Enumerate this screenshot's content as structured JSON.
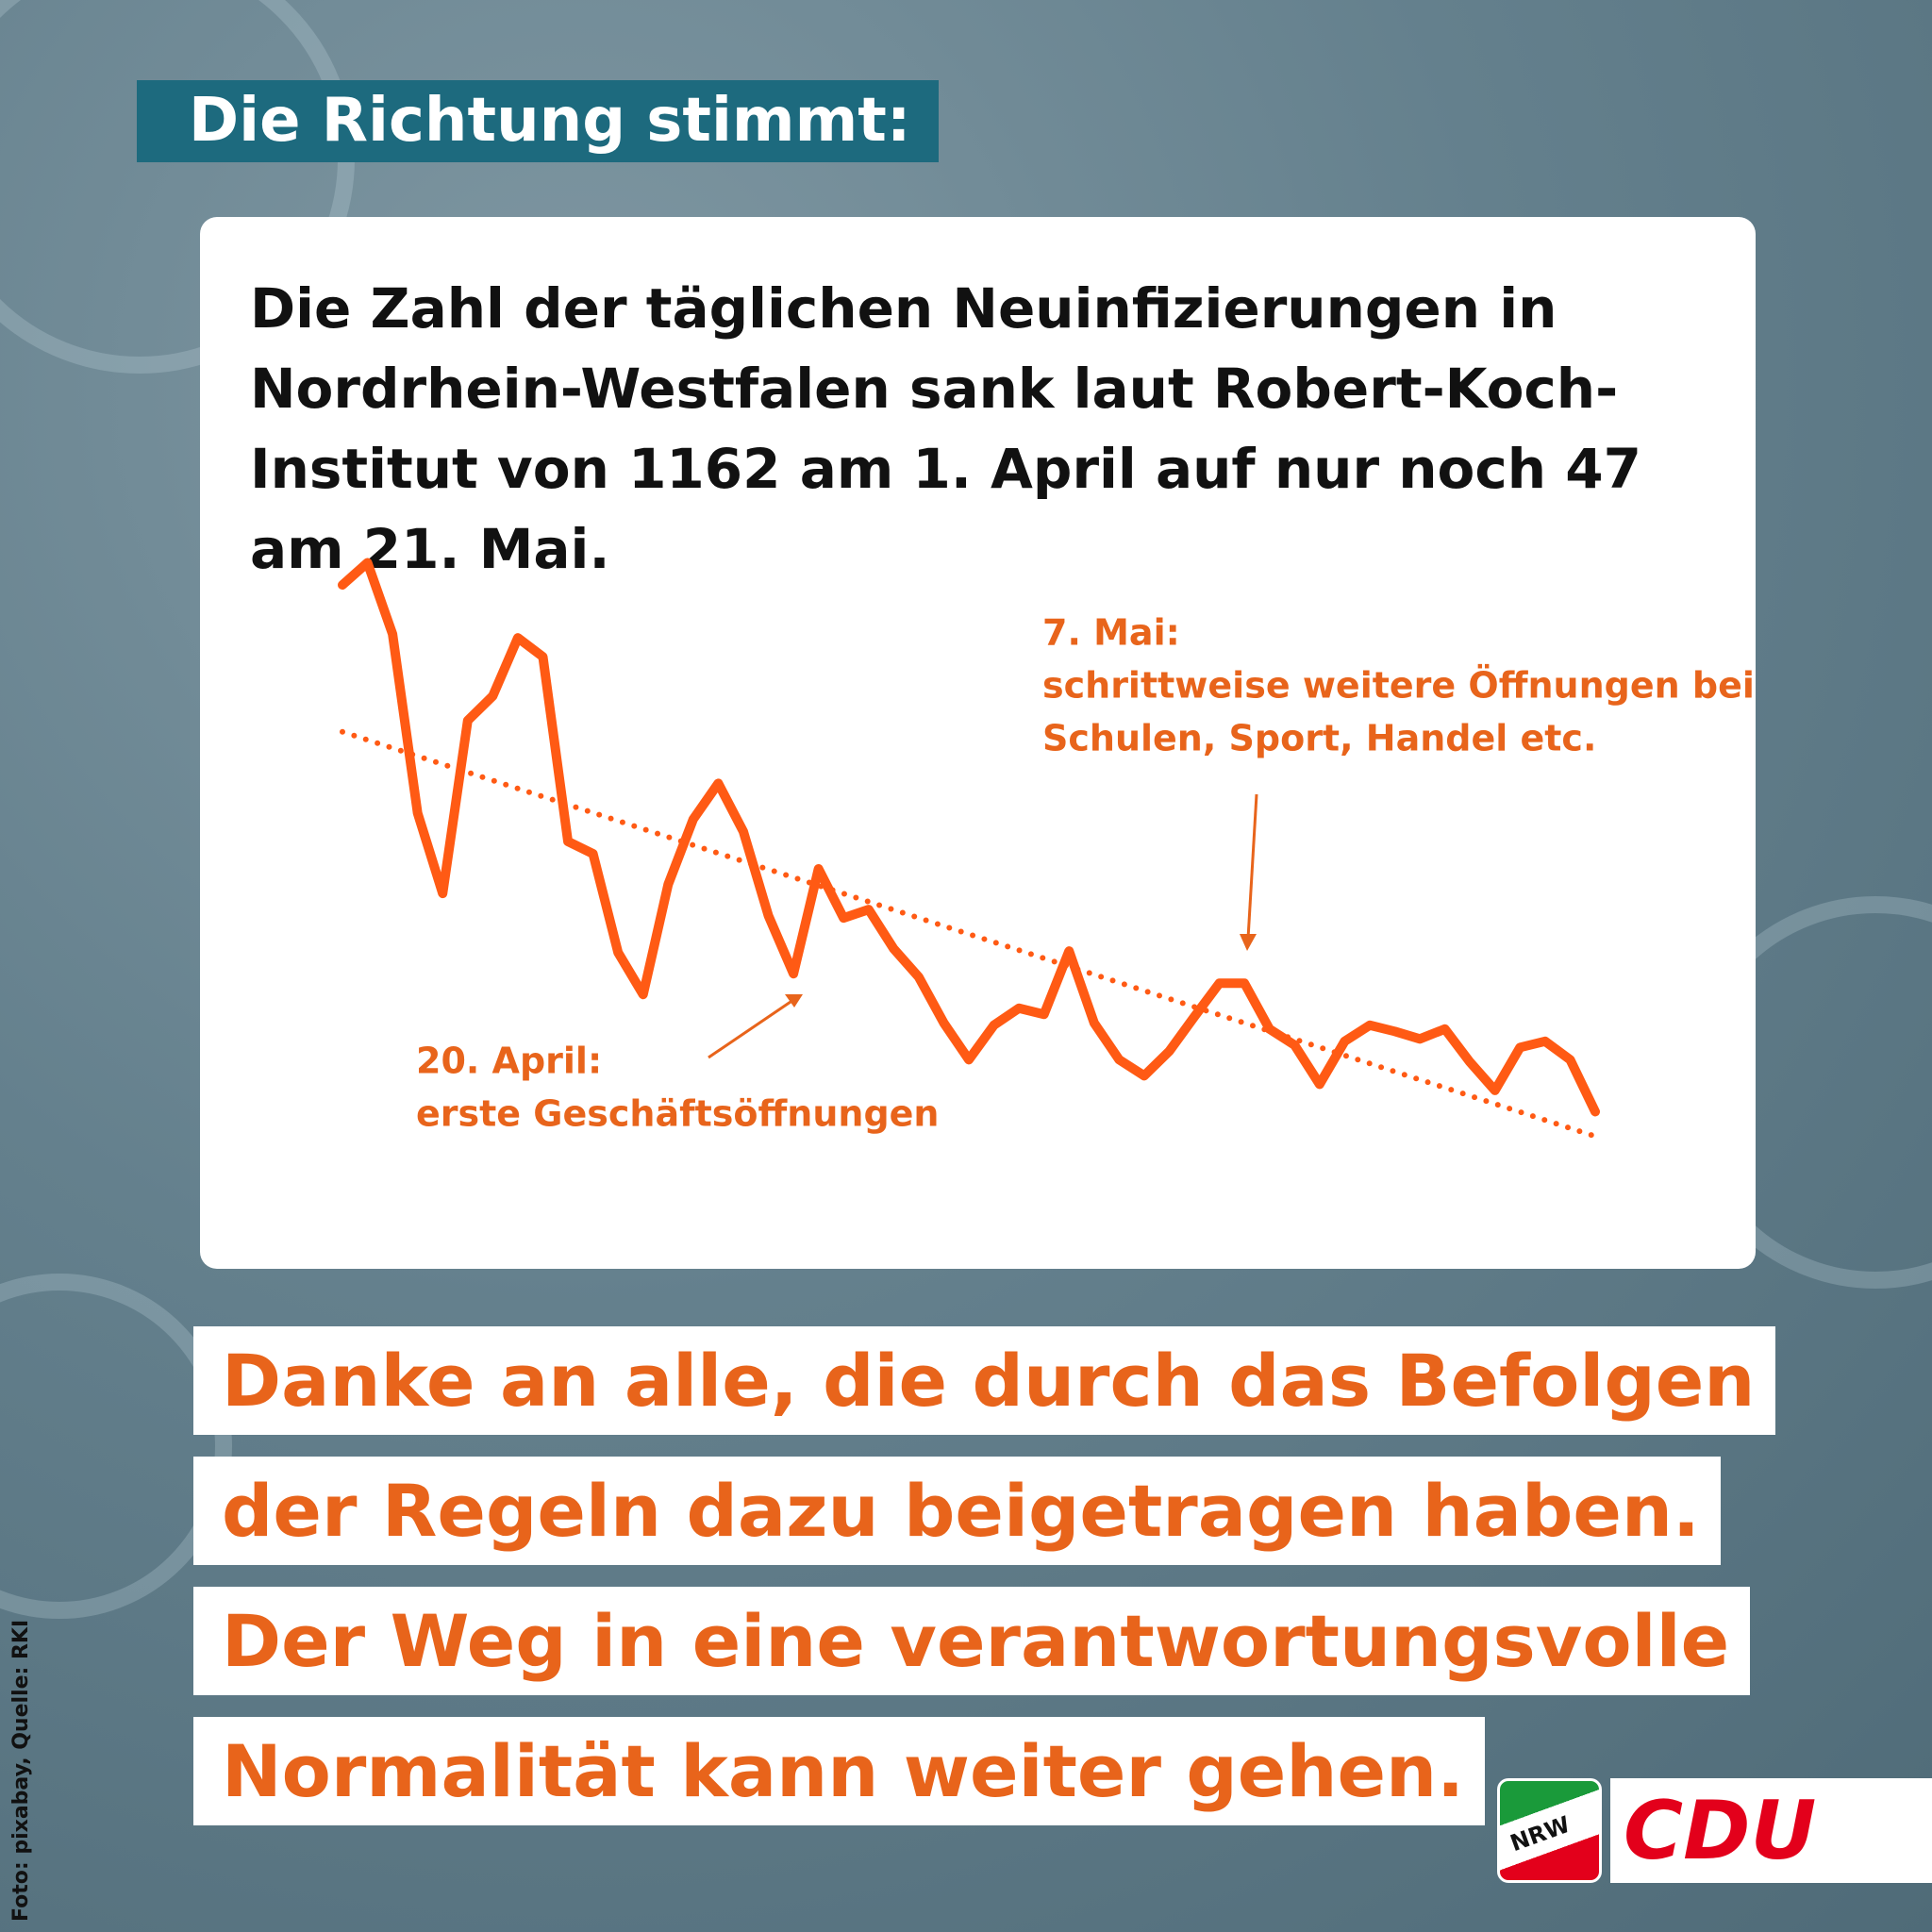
{
  "header": {
    "title": "Die Richtung stimmt:"
  },
  "chart_data": {
    "type": "line",
    "title": "Die Zahl der täglichen Neuinfizierungen in Nordrhein-Westfalen sank laut Robert-Koch-Institut von 1162 am 1. April auf nur noch 47 am 21. Mai.",
    "categories": [
      null,
      null,
      null,
      null,
      null,
      null,
      null,
      null,
      null,
      null,
      null,
      null,
      null,
      null,
      null,
      null,
      null,
      null,
      null,
      null,
      null,
      null,
      null,
      null,
      null,
      null,
      null,
      null,
      null,
      null,
      null,
      null,
      null,
      null,
      null,
      null,
      null,
      null,
      null,
      null,
      null,
      null,
      null,
      null,
      null,
      null,
      null,
      null,
      null,
      null,
      null
    ],
    "series": [
      {
        "color": "#ff5a14",
        "values": [
          1162,
          1209,
          1058,
          679,
          509,
          875,
          927,
          1050,
          1010,
          619,
          593,
          384,
          295,
          528,
          666,
          742,
          640,
          462,
          339,
          561,
          457,
          475,
          392,
          332,
          235,
          157,
          230,
          266,
          253,
          387,
          235,
          157,
          123,
          175,
          248,
          319,
          319,
          222,
          188,
          105,
          196,
          230,
          217,
          201,
          222,
          152,
          92,
          183,
          196,
          157,
          47
        ]
      }
    ],
    "trend": {
      "color": "#ff5a14",
      "style": "dotted",
      "values": [
        851,
        -5
      ]
    },
    "ylim": [
      -50,
      1250
    ],
    "annotations": [
      {
        "lines": [
          "7. Mai:",
          "schrittweise weitere Öffnungen bei",
          "Schulen, Sport, Handel etc."
        ]
      },
      {
        "lines": [
          "20. April:",
          "erste Geschäftsöffnungen"
        ]
      }
    ]
  },
  "message": {
    "lines": [
      "Danke an alle, die durch das Befolgen",
      "der Regeln dazu beigetragen haben.",
      "Der Weg in eine verantwortungsvolle",
      "Normalität kann weiter gehen."
    ]
  },
  "credit": "Foto: pixabay, Quelle: RKI",
  "logo": {
    "region": "NRW",
    "party": "CDU"
  }
}
